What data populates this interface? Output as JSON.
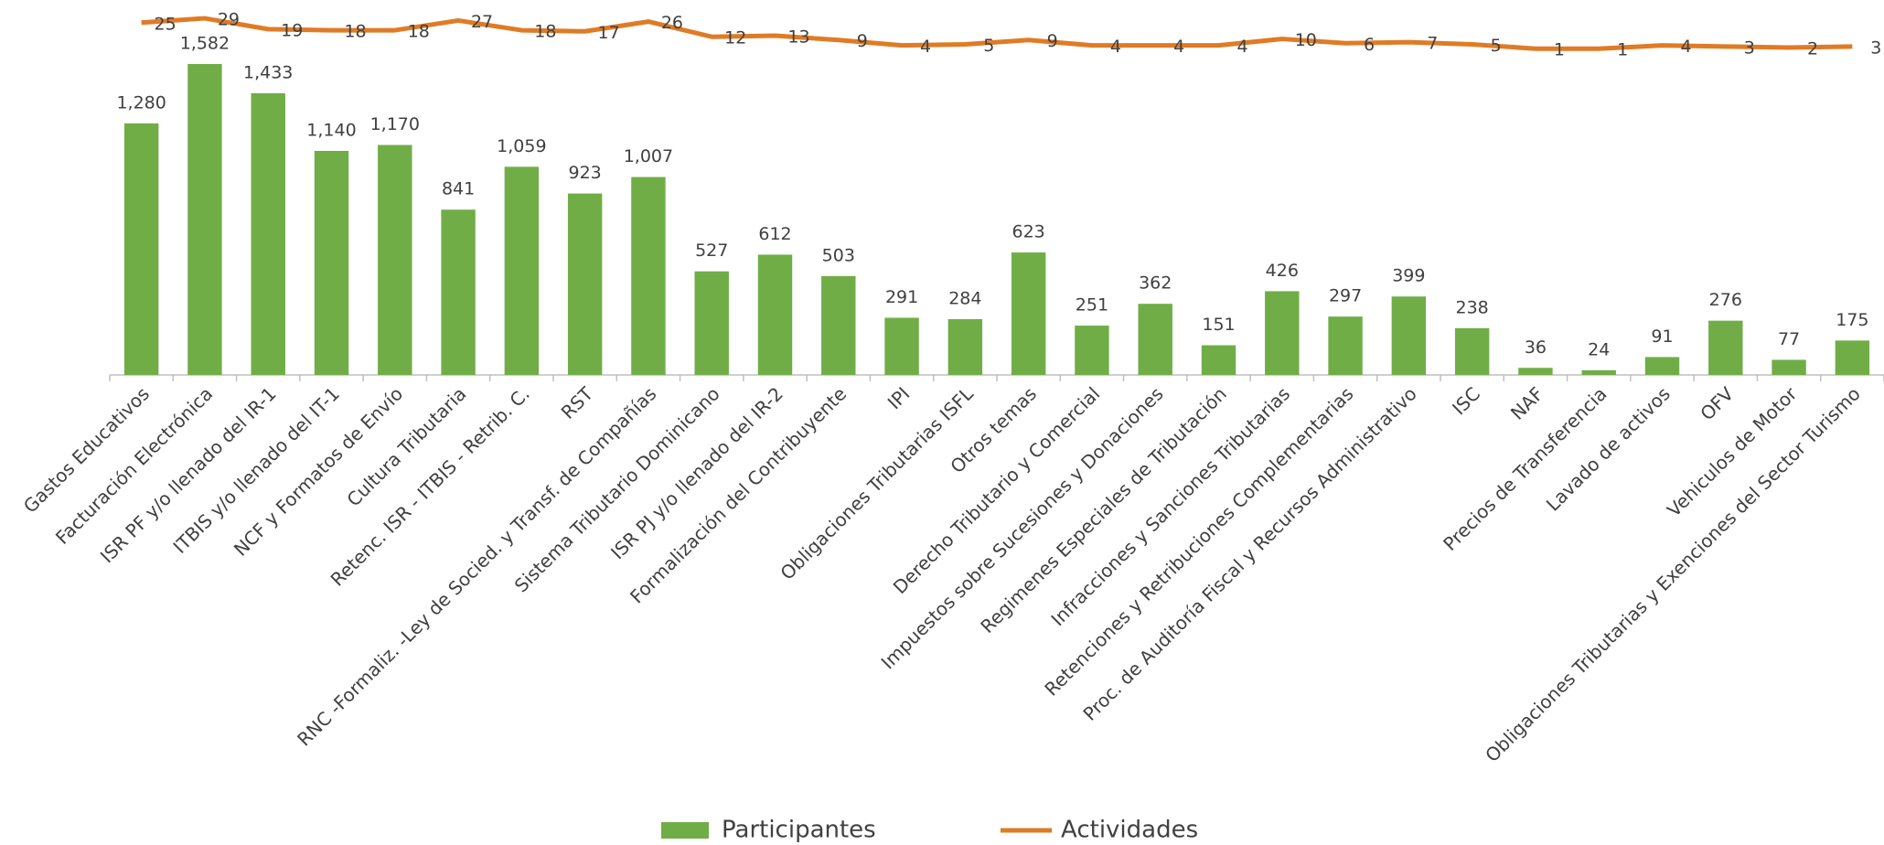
{
  "chart_data": {
    "type": "bar",
    "categories": [
      "Gastos Educativos",
      "Facturación Electrónica",
      "ISR PF y/o llenado del IR-1",
      "ITBIS y/o llenado del IT-1",
      "NCF y Formatos de Envío",
      "Cultura Tributaria",
      "Retenc. ISR - ITBIS - Retrib. C.",
      "RST",
      "RNC -Formaliz. -Ley de Socied. y Transf. de Compañías",
      "Sistema Tributario Dominicano",
      "ISR PJ y/o llenado del IR-2",
      "Formalización del Contribuyente",
      "IPI",
      "Obligaciones Tributarias ISFL",
      "Otros temas",
      "Derecho Tributario y Comercial",
      "Impuestos sobre Sucesiones y Donaciones",
      "Regimenes Especiales de Tributación",
      "Infracciones y Sanciones Tributarias",
      "Retenciones y Retribuciones Complementarias",
      "Proc. de Auditoría Fiscal y Recursos Administrativo",
      "ISC",
      "NAF",
      "Precios de Transferencia",
      "Lavado de activos",
      "OFV",
      "Vehiculos de Motor",
      "Obligaciones Tributarias y Exenciones del Sector Turismo"
    ],
    "series": [
      {
        "name": "Participantes",
        "type": "bar",
        "color": "#70ad47",
        "values": [
          1280,
          1582,
          1433,
          1140,
          1170,
          841,
          1059,
          923,
          1007,
          527,
          612,
          503,
          291,
          284,
          623,
          251,
          362,
          151,
          426,
          297,
          399,
          238,
          36,
          24,
          91,
          276,
          77,
          175
        ],
        "value_labels": [
          "1,280",
          "1,582",
          "1,433",
          "1,140",
          "1,170",
          "841",
          "1,059",
          "923",
          "1,007",
          "527",
          "612",
          "503",
          "291",
          "284",
          "623",
          "251",
          "362",
          "151",
          "426",
          "297",
          "399",
          "238",
          "36",
          "24",
          "91",
          "276",
          "77",
          "175"
        ]
      },
      {
        "name": "Actividades",
        "type": "line",
        "color": "#e07b25",
        "axis": "y2",
        "values": [
          25,
          29,
          19,
          18,
          18,
          27,
          18,
          17,
          26,
          12,
          13,
          9,
          4,
          5,
          9,
          4,
          4,
          4,
          10,
          6,
          7,
          5,
          1,
          1,
          4,
          3,
          2,
          3
        ]
      }
    ],
    "ylim": [
      0,
      1875
    ],
    "y2lim": [
      -300,
      40
    ],
    "grid": false,
    "legend": "bottom"
  }
}
